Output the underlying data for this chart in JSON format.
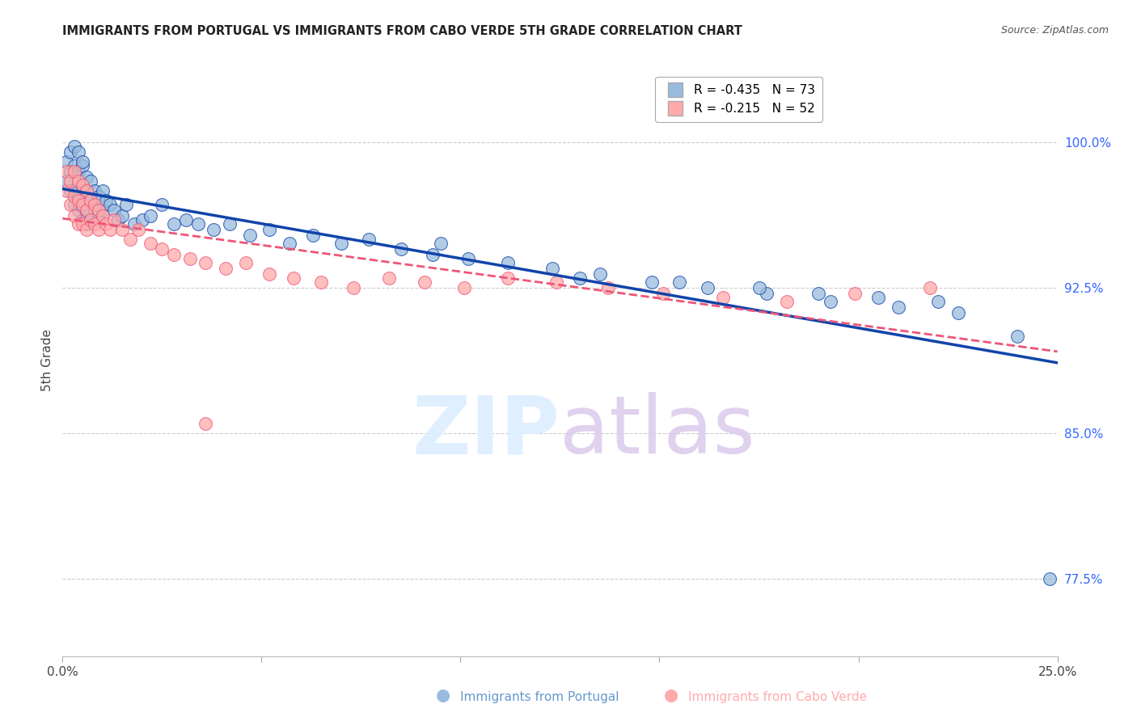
{
  "title": "IMMIGRANTS FROM PORTUGAL VS IMMIGRANTS FROM CABO VERDE 5TH GRADE CORRELATION CHART",
  "source": "Source: ZipAtlas.com",
  "ylabel": "5th Grade",
  "legend_label1": "R = -0.435   N = 73",
  "legend_label2": "R = -0.215   N = 52",
  "color_portugal": "#99BBDD",
  "color_caboverde": "#FFAAAA",
  "line_color_portugal": "#1144AA",
  "line_color_caboverde": "#EE5577",
  "xmin": 0.0,
  "xmax": 0.25,
  "ymin": 0.735,
  "ymax": 1.04,
  "yticks": [
    0.775,
    0.85,
    0.925,
    1.0
  ],
  "ytick_labels": [
    "77.5%",
    "85.0%",
    "92.5%",
    "100.0%"
  ],
  "xticks": [
    0.0,
    0.05,
    0.1,
    0.15,
    0.2,
    0.25
  ],
  "xtick_labels": [
    "0.0%",
    "",
    "",
    "",
    "",
    "25.0%"
  ],
  "bottom_label1": "Immigrants from Portugal",
  "bottom_label2": "Immigrants from Cabo Verde",
  "portugal_x": [
    0.001,
    0.001,
    0.002,
    0.002,
    0.002,
    0.003,
    0.003,
    0.003,
    0.003,
    0.004,
    0.004,
    0.004,
    0.004,
    0.005,
    0.005,
    0.005,
    0.005,
    0.005,
    0.006,
    0.006,
    0.006,
    0.006,
    0.007,
    0.007,
    0.007,
    0.008,
    0.008,
    0.009,
    0.009,
    0.01,
    0.01,
    0.011,
    0.012,
    0.013,
    0.014,
    0.015,
    0.016,
    0.018,
    0.02,
    0.022,
    0.025,
    0.028,
    0.031,
    0.034,
    0.038,
    0.042,
    0.047,
    0.052,
    0.057,
    0.063,
    0.07,
    0.077,
    0.085,
    0.093,
    0.102,
    0.112,
    0.123,
    0.135,
    0.148,
    0.162,
    0.177,
    0.193,
    0.21,
    0.225,
    0.095,
    0.13,
    0.155,
    0.175,
    0.19,
    0.205,
    0.22,
    0.24,
    0.248
  ],
  "portugal_y": [
    0.99,
    0.98,
    0.985,
    0.975,
    0.995,
    0.988,
    0.975,
    0.968,
    0.998,
    0.985,
    0.972,
    0.965,
    0.995,
    0.988,
    0.978,
    0.97,
    0.96,
    0.99,
    0.982,
    0.975,
    0.965,
    0.958,
    0.98,
    0.97,
    0.96,
    0.975,
    0.965,
    0.972,
    0.96,
    0.975,
    0.965,
    0.97,
    0.968,
    0.965,
    0.96,
    0.962,
    0.968,
    0.958,
    0.96,
    0.962,
    0.968,
    0.958,
    0.96,
    0.958,
    0.955,
    0.958,
    0.952,
    0.955,
    0.948,
    0.952,
    0.948,
    0.95,
    0.945,
    0.942,
    0.94,
    0.938,
    0.935,
    0.932,
    0.928,
    0.925,
    0.922,
    0.918,
    0.915,
    0.912,
    0.948,
    0.93,
    0.928,
    0.925,
    0.922,
    0.92,
    0.918,
    0.9,
    0.775
  ],
  "caboverde_x": [
    0.001,
    0.001,
    0.002,
    0.002,
    0.003,
    0.003,
    0.003,
    0.004,
    0.004,
    0.004,
    0.005,
    0.005,
    0.005,
    0.006,
    0.006,
    0.006,
    0.007,
    0.007,
    0.008,
    0.008,
    0.009,
    0.009,
    0.01,
    0.011,
    0.012,
    0.013,
    0.015,
    0.017,
    0.019,
    0.022,
    0.025,
    0.028,
    0.032,
    0.036,
    0.041,
    0.046,
    0.052,
    0.058,
    0.065,
    0.073,
    0.082,
    0.091,
    0.101,
    0.112,
    0.124,
    0.137,
    0.151,
    0.166,
    0.182,
    0.199,
    0.218,
    0.036
  ],
  "caboverde_y": [
    0.985,
    0.975,
    0.98,
    0.968,
    0.985,
    0.972,
    0.962,
    0.98,
    0.97,
    0.958,
    0.978,
    0.968,
    0.958,
    0.975,
    0.965,
    0.955,
    0.97,
    0.96,
    0.968,
    0.958,
    0.965,
    0.955,
    0.962,
    0.958,
    0.955,
    0.96,
    0.955,
    0.95,
    0.955,
    0.948,
    0.945,
    0.942,
    0.94,
    0.938,
    0.935,
    0.938,
    0.932,
    0.93,
    0.928,
    0.925,
    0.93,
    0.928,
    0.925,
    0.93,
    0.928,
    0.925,
    0.922,
    0.92,
    0.918,
    0.922,
    0.925,
    0.855
  ]
}
